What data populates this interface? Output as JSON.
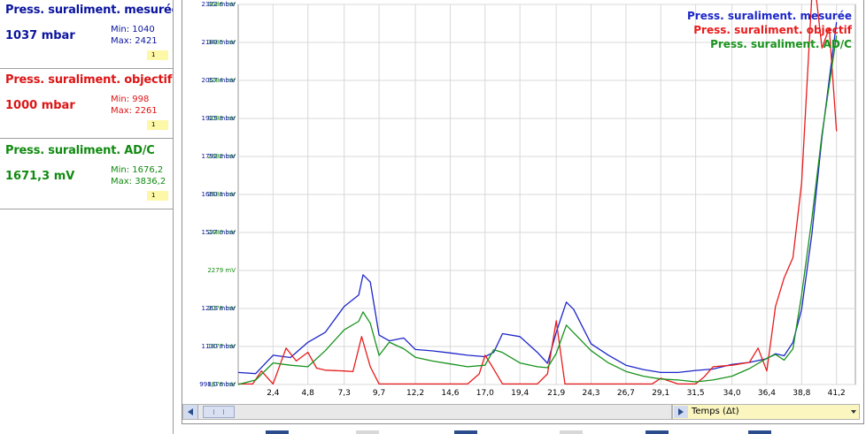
{
  "sensors": [
    {
      "title": "Press. suraliment. mesurée",
      "value": "1037 mbar",
      "min": "Min: 1040",
      "max": "Max: 2421",
      "badge": "1",
      "color": "#0a149e"
    },
    {
      "title": "Press. suraliment. objectif",
      "value": "1000 mbar",
      "min": "Min: 998",
      "max": "Max: 2261",
      "badge": "1",
      "color": "#dd1414"
    },
    {
      "title": "Press. suraliment. AD/C",
      "value": "1671,3 mV",
      "min": "Min: 1676,2",
      "max": "Max: 3836,2",
      "badge": "1",
      "color": "#108a10"
    }
  ],
  "footer": {
    "time_label": "Temps (Δt)"
  },
  "chart_data": {
    "type": "line",
    "grid": true,
    "legend_placement": "top-right",
    "xlabel": "Temps (Δt)",
    "x_ticks": [
      "2,4",
      "4,8",
      "7,3",
      "9,7",
      "12,2",
      "14,6",
      "17,0",
      "19,4",
      "21,9",
      "24,3",
      "26,7",
      "29,1",
      "31,5",
      "34,0",
      "36,4",
      "38,8",
      "41,2"
    ],
    "x_tick_values": [
      2.4,
      4.8,
      7.3,
      9.7,
      12.2,
      14.6,
      17.0,
      19.4,
      21.9,
      24.3,
      26.7,
      29.1,
      31.5,
      34.0,
      36.4,
      38.8,
      41.2
    ],
    "xlim": [
      0,
      42.5
    ],
    "axes": {
      "mV": {
        "ticks": [
          "1676 mV",
          "1877 mV",
          "2078 mV",
          "2279 mV",
          "2480 mV",
          "2681 mV",
          "2882 mV",
          "3083 mV",
          "3284 mV",
          "3485 mV",
          "3686 mV"
        ],
        "ylim": [
          1676,
          3686
        ],
        "color": "#108a10"
      },
      "mbar": {
        "ticks": [
          "998,0 mbar",
          "1130 mbar",
          "1263 mbar",
          "1527 mbar",
          "1660 mbar",
          "1792 mbar",
          "1925 mbar",
          "2057 mbar",
          "2189 mbar",
          "2322 mbar"
        ],
        "ylim": [
          998,
          2322
        ],
        "color": "#0a149e"
      }
    },
    "series": [
      {
        "name": "Press. suraliment. mesurée",
        "color": "#1c26c8",
        "axis": "mbar",
        "x": [
          0,
          1.2,
          2.4,
          3.6,
          4.8,
          6.0,
          7.3,
          8.3,
          8.6,
          9.1,
          9.7,
          10.4,
          11.4,
          12.2,
          13.4,
          14.6,
          15.8,
          17.0,
          17.6,
          18.2,
          19.4,
          20.6,
          21.3,
          21.9,
          22.6,
          23.1,
          24.3,
          25.5,
          26.7,
          27.9,
          29.1,
          30.3,
          31.5,
          32.7,
          34.0,
          35.2,
          36.4,
          37.0,
          37.6,
          38.2,
          38.8,
          39.5,
          40.2,
          41.2
        ],
        "y": [
          1040,
          1036,
          1100,
          1092,
          1145,
          1180,
          1270,
          1310,
          1380,
          1355,
          1170,
          1150,
          1160,
          1120,
          1115,
          1108,
          1100,
          1095,
          1110,
          1175,
          1165,
          1110,
          1072,
          1180,
          1285,
          1260,
          1140,
          1100,
          1065,
          1050,
          1040,
          1040,
          1047,
          1052,
          1068,
          1075,
          1088,
          1105,
          1098,
          1145,
          1260,
          1520,
          1860,
          2260
        ]
      },
      {
        "name": "Press. suraliment. objectif",
        "color": "#e81c1c",
        "axis": "mbar",
        "x": [
          0,
          1.0,
          1.6,
          2.4,
          3.3,
          4.0,
          4.8,
          5.4,
          6.0,
          7.3,
          7.9,
          8.5,
          9.1,
          9.7,
          10.3,
          11.4,
          12.2,
          13.4,
          14.6,
          15.8,
          16.6,
          17.0,
          17.5,
          18.2,
          19.4,
          20.6,
          21.3,
          21.9,
          22.5,
          23.1,
          24.3,
          25.5,
          26.7,
          27.9,
          28.5,
          29.1,
          30.3,
          31.5,
          32.1,
          32.7,
          34.0,
          35.2,
          35.8,
          36.4,
          37.0,
          37.6,
          38.2,
          38.8,
          39.5,
          39.8,
          40.2,
          40.7,
          41.2
        ],
        "y": [
          1000,
          1000,
          1045,
          1000,
          1125,
          1080,
          1110,
          1055,
          1048,
          1045,
          1043,
          1165,
          1060,
          1000,
          1000,
          1000,
          1000,
          1000,
          1000,
          1000,
          1035,
          1100,
          1060,
          1000,
          1000,
          1000,
          1035,
          1220,
          1000,
          1000,
          1000,
          1000,
          1000,
          1000,
          1000,
          1020,
          1000,
          1000,
          1025,
          1060,
          1065,
          1075,
          1125,
          1045,
          1270,
          1370,
          1440,
          1700,
          2350,
          2350,
          2170,
          2240,
          1880
        ]
      },
      {
        "name": "Press. suraliment. AD/C",
        "color": "#18921c",
        "axis": "mV",
        "x": [
          0,
          1.2,
          2.4,
          3.6,
          4.8,
          6.0,
          7.3,
          8.3,
          8.6,
          9.1,
          9.7,
          10.4,
          11.4,
          12.2,
          13.4,
          14.6,
          15.8,
          17.0,
          17.6,
          18.2,
          19.4,
          20.6,
          21.3,
          21.9,
          22.6,
          23.1,
          24.3,
          25.5,
          26.7,
          27.9,
          29.1,
          30.3,
          31.5,
          32.7,
          34.0,
          35.2,
          36.4,
          37.0,
          37.6,
          38.2,
          38.8,
          39.5,
          40.2,
          41.2
        ],
        "y": [
          1676,
          1700,
          1790,
          1778,
          1770,
          1855,
          1965,
          2010,
          2060,
          2000,
          1830,
          1900,
          1865,
          1820,
          1800,
          1785,
          1770,
          1778,
          1860,
          1845,
          1790,
          1770,
          1765,
          1840,
          1990,
          1950,
          1855,
          1790,
          1745,
          1720,
          1705,
          1700,
          1690,
          1700,
          1720,
          1760,
          1815,
          1835,
          1805,
          1865,
          2150,
          2550,
          3000,
          3520
        ]
      }
    ]
  }
}
